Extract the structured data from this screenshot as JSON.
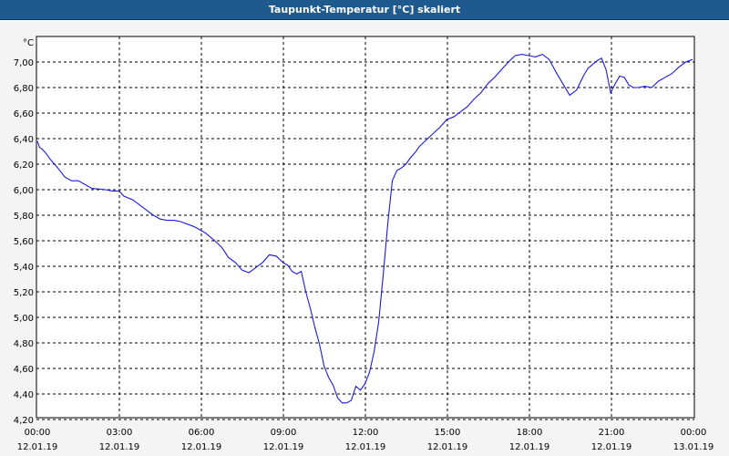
{
  "window": {
    "title": "Taupunkt-Temperatur [°C] skaliert"
  },
  "colors": {
    "titlebar": "#1f5a8e",
    "series": "#1a1adc",
    "grid": "#000000"
  },
  "chart_data": {
    "type": "line",
    "title": "Taupunkt-Temperatur [°C] skaliert",
    "ylabel": "°C",
    "xlabel": "",
    "ylim": [
      4.2,
      7.2
    ],
    "yticks": [
      "4,20",
      "4,40",
      "4,60",
      "4,80",
      "5,00",
      "5,20",
      "5,40",
      "5,60",
      "5,80",
      "6,00",
      "6,20",
      "6,40",
      "6,60",
      "6,80",
      "7,00"
    ],
    "xticks": [
      {
        "time": "00:00",
        "date": "12.01.19"
      },
      {
        "time": "03:00",
        "date": "12.01.19"
      },
      {
        "time": "06:00",
        "date": "12.01.19"
      },
      {
        "time": "09:00",
        "date": "12.01.19"
      },
      {
        "time": "12:00",
        "date": "12.01.19"
      },
      {
        "time": "15:00",
        "date": "12.01.19"
      },
      {
        "time": "18:00",
        "date": "12.01.19"
      },
      {
        "time": "21:00",
        "date": "12.01.19"
      },
      {
        "time": "00:00",
        "date": "13.01.19"
      }
    ],
    "xlim": [
      "12.01.19 00:00",
      "13.01.19 00:00"
    ],
    "grid": true,
    "series": [
      {
        "name": "",
        "x": [
          "00:00",
          "00:05",
          "00:10",
          "00:20",
          "00:30",
          "00:45",
          "01:00",
          "01:15",
          "01:30",
          "02:00",
          "02:30",
          "02:45",
          "03:00",
          "03:10",
          "03:30",
          "03:45",
          "04:00",
          "04:15",
          "04:30",
          "04:45",
          "05:00",
          "05:15",
          "05:30",
          "05:45",
          "05:55",
          "06:10",
          "06:20",
          "06:30",
          "06:45",
          "07:00",
          "07:15",
          "07:30",
          "07:45",
          "08:00",
          "08:15",
          "08:30",
          "08:45",
          "09:00",
          "09:10",
          "09:20",
          "09:30",
          "09:40",
          "09:50",
          "10:00",
          "10:10",
          "10:20",
          "10:30",
          "10:40",
          "10:50",
          "11:00",
          "11:10",
          "11:20",
          "11:30",
          "11:40",
          "11:50",
          "12:00",
          "12:10",
          "12:20",
          "12:30",
          "12:40",
          "12:50",
          "13:00",
          "13:10",
          "13:20",
          "13:30",
          "13:40",
          "13:50",
          "14:00",
          "14:15",
          "14:30",
          "14:45",
          "15:00",
          "15:15",
          "15:30",
          "15:45",
          "16:00",
          "16:15",
          "16:30",
          "16:45",
          "17:00",
          "17:15",
          "17:30",
          "17:45",
          "18:00",
          "18:15",
          "18:30",
          "18:45",
          "19:00",
          "19:15",
          "19:30",
          "19:45",
          "20:00",
          "20:10",
          "20:20",
          "20:30",
          "20:40",
          "20:50",
          "21:00",
          "21:10",
          "21:20",
          "21:30",
          "21:40",
          "21:50",
          "22:00",
          "22:15",
          "22:30",
          "22:45",
          "23:00",
          "23:15",
          "23:30",
          "23:45",
          "00:00"
        ],
        "values": [
          6.38,
          6.33,
          6.32,
          6.28,
          6.23,
          6.17,
          6.1,
          6.07,
          6.07,
          6.01,
          6.0,
          5.99,
          5.99,
          5.95,
          5.92,
          5.88,
          5.84,
          5.8,
          5.77,
          5.76,
          5.76,
          5.75,
          5.73,
          5.71,
          5.69,
          5.66,
          5.63,
          5.6,
          5.55,
          5.47,
          5.43,
          5.37,
          5.35,
          5.39,
          5.43,
          5.49,
          5.48,
          5.43,
          5.41,
          5.36,
          5.34,
          5.36,
          5.2,
          5.07,
          4.92,
          4.79,
          4.62,
          4.53,
          4.47,
          4.37,
          4.33,
          4.33,
          4.35,
          4.46,
          4.43,
          4.48,
          4.57,
          4.73,
          4.96,
          5.33,
          5.73,
          6.07,
          6.15,
          6.17,
          6.2,
          6.25,
          6.29,
          6.34,
          6.39,
          6.44,
          6.49,
          6.55,
          6.57,
          6.61,
          6.65,
          6.71,
          6.76,
          6.83,
          6.88,
          6.94,
          7.0,
          7.05,
          7.06,
          7.05,
          7.04,
          7.06,
          7.02,
          6.92,
          6.83,
          6.74,
          6.78,
          6.89,
          6.95,
          6.98,
          7.01,
          7.03,
          6.94,
          6.76,
          6.83,
          6.89,
          6.88,
          6.82,
          6.8,
          6.8,
          6.81,
          6.8,
          6.85,
          6.88,
          6.91,
          6.96,
          7.0,
          7.02
        ]
      }
    ]
  }
}
